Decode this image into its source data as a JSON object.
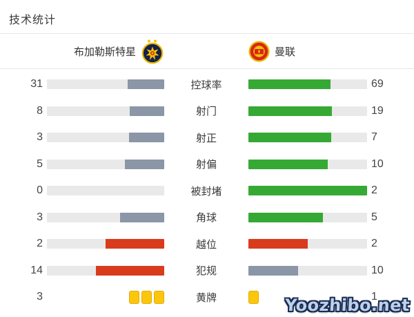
{
  "title": "技术统计",
  "watermark": "Yoozhibo.net",
  "teams": {
    "home": {
      "name": "布加勒斯特星"
    },
    "away": {
      "name": "曼联"
    }
  },
  "colors": {
    "gray": "#8b96a6",
    "green": "#36a935",
    "red": "#d93b1d",
    "yellow": "#fcc60d",
    "track": "#e9e9e9"
  },
  "rows": [
    {
      "label": "控球率",
      "home": "31",
      "away": "69",
      "home_pct": 31,
      "away_pct": 69,
      "home_color": "gray",
      "away_color": "green"
    },
    {
      "label": "射门",
      "home": "8",
      "away": "19",
      "home_pct": 29.6,
      "away_pct": 70.4,
      "home_color": "gray",
      "away_color": "green"
    },
    {
      "label": "射正",
      "home": "3",
      "away": "7",
      "home_pct": 30,
      "away_pct": 70,
      "home_color": "gray",
      "away_color": "green"
    },
    {
      "label": "射偏",
      "home": "5",
      "away": "10",
      "home_pct": 33.3,
      "away_pct": 66.7,
      "home_color": "gray",
      "away_color": "green"
    },
    {
      "label": "被封堵",
      "home": "0",
      "away": "2",
      "home_pct": 0,
      "away_pct": 100,
      "home_color": "gray",
      "away_color": "green"
    },
    {
      "label": "角球",
      "home": "3",
      "away": "5",
      "home_pct": 37.5,
      "away_pct": 62.5,
      "home_color": "gray",
      "away_color": "green"
    },
    {
      "label": "越位",
      "home": "2",
      "away": "2",
      "home_pct": 50,
      "away_pct": 50,
      "home_color": "red",
      "away_color": "red"
    },
    {
      "label": "犯规",
      "home": "14",
      "away": "10",
      "home_pct": 58.3,
      "away_pct": 41.7,
      "home_color": "red",
      "away_color": "gray"
    },
    {
      "label": "黄牌",
      "home": "3",
      "away": "1",
      "home_cards": 3,
      "away_cards": 1
    }
  ],
  "chart_data": {
    "type": "bar",
    "title": "技术统计",
    "orientation": "horizontal-paired",
    "categories": [
      "控球率",
      "射门",
      "射正",
      "射偏",
      "被封堵",
      "角球",
      "越位",
      "犯规",
      "黄牌"
    ],
    "series": [
      {
        "name": "布加勒斯特星",
        "values": [
          31,
          8,
          3,
          5,
          0,
          3,
          2,
          14,
          3
        ]
      },
      {
        "name": "曼联",
        "values": [
          69,
          19,
          7,
          10,
          2,
          5,
          2,
          10,
          1
        ]
      }
    ],
    "notes": "Each pair of bars is normalized to the row total; home bar fills right-to-left, away bar left-to-right. Yellow-card row uses card icons instead of bars."
  }
}
